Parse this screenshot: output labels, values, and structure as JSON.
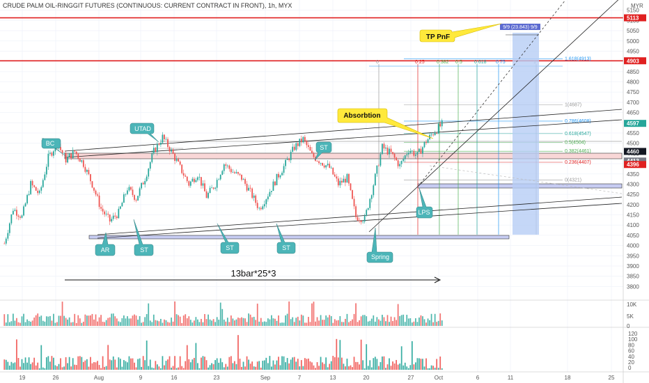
{
  "title": "CRUDE PALM OIL-RINGGIT FUTURES (CONTINUOUS: CURRENT CONTRACT IN FRONT), 1h, MYX",
  "currency": "MYR",
  "colors": {
    "up": "#26a69a",
    "down": "#ef5350",
    "bubble": "#4cb5b8",
    "red_line": "#e02020",
    "yellow": "#ffe93b"
  },
  "chart_data": {
    "type": "candlestick",
    "ylim": [
      3740,
      5200
    ],
    "y_ticks": [
      "5150",
      "5100",
      "5050",
      "5000",
      "4950",
      "4900",
      "4850",
      "4800",
      "4750",
      "4700",
      "4650",
      "4600",
      "4550",
      "4500",
      "4450",
      "4400",
      "4350",
      "4300",
      "4250",
      "4200",
      "4150",
      "4100",
      "4050",
      "4000",
      "3950",
      "3900",
      "3850",
      "3800"
    ],
    "x_ticks": [
      "19",
      "26",
      "Aug",
      "9",
      "16",
      "23",
      "Sep",
      "7",
      "13",
      "20",
      "27",
      "Oct",
      "6",
      "11",
      "18",
      "25"
    ],
    "price_path": [
      [
        0,
        4010
      ],
      [
        5,
        4180
      ],
      [
        10,
        4140
      ],
      [
        15,
        4300
      ],
      [
        20,
        4250
      ],
      [
        25,
        4430
      ],
      [
        30,
        4500
      ],
      [
        35,
        4420
      ],
      [
        40,
        4460
      ],
      [
        45,
        4400
      ],
      [
        50,
        4300
      ],
      [
        55,
        4180
      ],
      [
        60,
        4120
      ],
      [
        65,
        4160
      ],
      [
        70,
        4280
      ],
      [
        75,
        4230
      ],
      [
        80,
        4330
      ],
      [
        85,
        4460
      ],
      [
        90,
        4530
      ],
      [
        95,
        4460
      ],
      [
        100,
        4380
      ],
      [
        105,
        4300
      ],
      [
        110,
        4350
      ],
      [
        115,
        4240
      ],
      [
        120,
        4300
      ],
      [
        125,
        4400
      ],
      [
        130,
        4360
      ],
      [
        135,
        4330
      ],
      [
        140,
        4260
      ],
      [
        145,
        4180
      ],
      [
        150,
        4250
      ],
      [
        155,
        4330
      ],
      [
        160,
        4400
      ],
      [
        165,
        4480
      ],
      [
        170,
        4520
      ],
      [
        175,
        4440
      ],
      [
        180,
        4410
      ],
      [
        185,
        4380
      ],
      [
        190,
        4300
      ],
      [
        195,
        4330
      ],
      [
        200,
        4140
      ],
      [
        205,
        4130
      ],
      [
        210,
        4300
      ],
      [
        215,
        4480
      ],
      [
        220,
        4450
      ],
      [
        225,
        4390
      ],
      [
        230,
        4470
      ],
      [
        235,
        4440
      ],
      [
        240,
        4510
      ],
      [
        245,
        4560
      ],
      [
        250,
        4600
      ]
    ],
    "last_price": "4597",
    "price_labels": [
      {
        "value": "5113",
        "color": "#e02020",
        "y": 5113
      },
      {
        "value": "4903",
        "color": "#e02020",
        "y": 4903
      },
      {
        "value": "4597",
        "color": "#26a69a",
        "y": 4597
      },
      {
        "value": "4460",
        "color": "#131722",
        "y": 4460
      },
      {
        "value": "4413",
        "color": "#787b86",
        "y": 4413
      },
      {
        "value": "4396",
        "color": "#e02020",
        "y": 4396
      }
    ],
    "fib_vertical": [
      "0",
      "0.25",
      "0.382",
      "0.5",
      "0.618",
      "0.75",
      "1"
    ],
    "fib_horizontal": [
      {
        "label": "1.618(4913)",
        "y": 4913,
        "color": "#2196f3"
      },
      {
        "label": "1(4687)",
        "y": 4687,
        "color": "#999999"
      },
      {
        "label": "0.786(4608)",
        "y": 4608,
        "color": "#2196f3"
      },
      {
        "label": "0.618(4547)",
        "y": 4547,
        "color": "#26a69a"
      },
      {
        "label": "0.5(4504)",
        "y": 4504,
        "color": "#4caf50"
      },
      {
        "label": "0.382(4461)",
        "y": 4461,
        "color": "#4caf50"
      },
      {
        "label": "0.236(4407)",
        "y": 4407,
        "color": "#e02020"
      },
      {
        "label": "0(4321)",
        "y": 4321,
        "color": "#999999"
      }
    ],
    "tp_label": "9/9 (23.843) 9/9",
    "annotations": [
      {
        "text": "BC"
      },
      {
        "text": "UTAD"
      },
      {
        "text": "ST"
      },
      {
        "text": "AR"
      },
      {
        "text": "ST"
      },
      {
        "text": "ST"
      },
      {
        "text": "ST"
      },
      {
        "text": "LPS"
      },
      {
        "text": "Spring"
      }
    ],
    "callouts": {
      "tp": "TP PnF",
      "absorption": "Absorbtion"
    },
    "count_label": "13bar*25*3",
    "volume_ticks": [
      "10K",
      "5K",
      "0"
    ],
    "indicator_ticks": [
      "120",
      "100",
      "80",
      "60",
      "40",
      "20",
      "0"
    ]
  }
}
